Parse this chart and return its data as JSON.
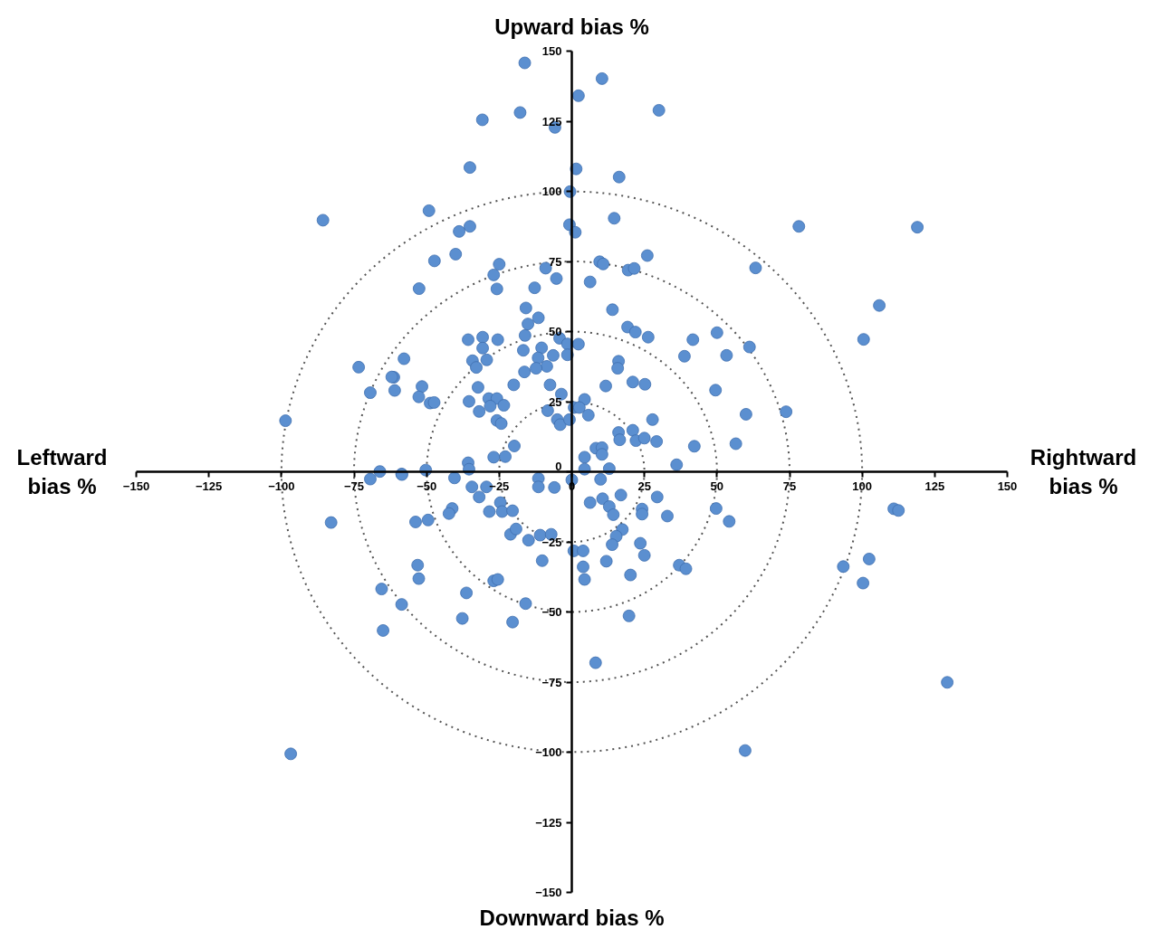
{
  "chart_data": {
    "type": "scatter",
    "grid": false,
    "annotations": [
      "Upward bias %",
      "Leftward\nbias %",
      "Rightward\nbias %",
      "Downward bias %"
    ],
    "xlim": [
      -150,
      150
    ],
    "ylim": [
      -150,
      150
    ],
    "xticks": [
      -150,
      -125,
      -100,
      -75,
      -50,
      -25,
      0,
      25,
      50,
      75,
      100,
      125,
      150
    ],
    "yticks": [
      -150,
      -125,
      -100,
      -75,
      -50,
      -25,
      0,
      25,
      50,
      75,
      100,
      125,
      150
    ],
    "series": [
      {
        "marker": "circle",
        "color": "#5b8fd0",
        "x": [
          -16.2,
          -17.8,
          -30.8,
          -5.8,
          -35.1,
          -85.7,
          -49.2,
          -35.1,
          -38.8,
          -40,
          -47.3,
          -52.6,
          -26.9,
          -25.8,
          -25,
          -9,
          -5.3,
          -12.8,
          6.3,
          14,
          -15.8,
          -11.5,
          -15.1,
          -16.1,
          -4.2,
          -1.5,
          2.3,
          -1.5,
          -16.7,
          -10.4,
          -11.6,
          -6.4,
          -8.6,
          -12.3,
          -16.3,
          -35.7,
          -30.7,
          -25.5,
          -30.7,
          -34.2,
          -32.9,
          -29.3,
          -57.8,
          -61.3,
          -61,
          -51.6,
          -52.7,
          -48.8,
          -47.4,
          -32.3,
          -35.4,
          -31.9,
          -28.6,
          -25.8,
          -28.1,
          -23.4,
          -25.8,
          -24.3,
          -20,
          -7.5,
          -3.6,
          4.4,
          0.8,
          2.6,
          -8.3,
          -5,
          -4,
          -0.8,
          5.7,
          11.7,
          16.1,
          15.8,
          19.2,
          21.9,
          26.3,
          21,
          25.2,
          41.7,
          38.8,
          50,
          53.3,
          49.5,
          27.8,
          16.1,
          16.5,
          21,
          22.1,
          25,
          29.2,
          42.2,
          56.5,
          36.1,
          12.9,
          8.3,
          10.4,
          10.4,
          4.4,
          4.4,
          -19.8,
          -26.9,
          -22.9,
          -35.7,
          -35.4,
          -50.3,
          -58.6,
          -40.4,
          -11.5,
          -11.5,
          -6,
          0,
          9.9,
          -34.4,
          -29.4,
          -31.9,
          -24.6,
          -24,
          -20.4,
          -28.4,
          -41.2,
          -42.3,
          -49.5,
          -53.8,
          6.3,
          10.6,
          16.9,
          12.9,
          14.3,
          24.2,
          24.2,
          29.4,
          32.9,
          49.7,
          54.2,
          17.4,
          15.3,
          13.9,
          23.6,
          25,
          11.9,
          20.2,
          0.7,
          3.9,
          3.9,
          4.4,
          -10.2,
          -10.9,
          -7.1,
          -14.9,
          -21.1,
          -19.2,
          37,
          39.3,
          -53.1,
          -52.7,
          -26.9,
          -25.5,
          -36.3,
          -15.9,
          -58.6,
          10.4,
          2.3,
          30,
          1.5,
          16.3,
          -0.6,
          14.6,
          -0.8,
          1.2,
          78.2,
          119,
          26,
          9.6,
          10.8,
          19.4,
          21.5,
          63.3,
          105.9,
          100.5,
          61.2,
          73.8,
          60,
          -73.4,
          -69.4,
          -62,
          -98.6,
          -69.4,
          -66.1,
          -58.5,
          -82.9,
          -65.5,
          -65,
          -37.7,
          -20.4,
          -96.8,
          19.7,
          8.2,
          59.7,
          129.3,
          102.4,
          93.5,
          100.3,
          110.9,
          112.5
        ],
        "values": [
          145.8,
          128.1,
          125.5,
          122.8,
          108.5,
          89.7,
          93.1,
          87.5,
          85.7,
          77.6,
          75.2,
          65.3,
          70.2,
          65.2,
          74,
          72.6,
          68.9,
          65.6,
          67.7,
          57.8,
          58.4,
          54.9,
          52.7,
          48.6,
          47.6,
          45.6,
          45.5,
          41.7,
          43.3,
          44.2,
          40.6,
          41.5,
          37.6,
          36.9,
          35.6,
          47.1,
          48,
          47.1,
          44.1,
          39.6,
          37.2,
          39.9,
          40.3,
          33.7,
          29,
          30.4,
          26.7,
          24.5,
          24.7,
          30.1,
          25.1,
          21.5,
          26.1,
          26.1,
          23.4,
          23.7,
          18.3,
          17.2,
          31,
          31,
          27.7,
          25.8,
          22.9,
          22.9,
          21.8,
          18.6,
          16.8,
          18.6,
          20.2,
          30.6,
          39.4,
          36.9,
          51.6,
          49.8,
          48,
          32,
          31.2,
          47.1,
          41.2,
          49.6,
          41.5,
          29.1,
          18.6,
          14,
          11.4,
          14.8,
          11.1,
          12,
          10.8,
          9.1,
          10,
          2.5,
          1.1,
          8.4,
          8.6,
          6.2,
          5.2,
          0.9,
          9.2,
          5.2,
          5.4,
          3.2,
          0.9,
          0.6,
          -0.8,
          -2.2,
          -2.4,
          -5.4,
          -5.6,
          -2.9,
          -2.7,
          -5.4,
          -5.4,
          -9,
          -11,
          -14.2,
          -13.9,
          -14.2,
          -13.1,
          -14.9,
          -17.2,
          -17.9,
          -11,
          -9.6,
          -8.3,
          -12.4,
          -15.3,
          -13.3,
          -15.1,
          -9,
          -15.8,
          -13.1,
          -17.7,
          -20.6,
          -23,
          -26,
          -25.5,
          -29.8,
          -31.9,
          -36.8,
          -28.2,
          -28.2,
          -33.9,
          -38.4,
          -31.7,
          -22.6,
          -22.3,
          -24.4,
          -22.3,
          -20.4,
          -33.3,
          -34.6,
          -33.3,
          -38.1,
          -38.9,
          -38.4,
          -43.2,
          -47,
          -47.3,
          140.2,
          134.1,
          128.9,
          108,
          105.1,
          99.9,
          90.4,
          88.1,
          85.4,
          87.5,
          87.2,
          77.1,
          74.9,
          74.1,
          71.9,
          72.5,
          72.7,
          59.3,
          47.2,
          44.5,
          21.4,
          20.5,
          37.3,
          28.2,
          33.8,
          18.2,
          -2.6,
          0.1,
          -1,
          -18.1,
          -41.8,
          -56.6,
          -52.3,
          -53.6,
          -100.6,
          -51.4,
          -68.1,
          -99.4,
          -75.1,
          -31.1,
          -33.8,
          -39.7,
          -13.2,
          -13.8
        ]
      }
    ]
  }
}
